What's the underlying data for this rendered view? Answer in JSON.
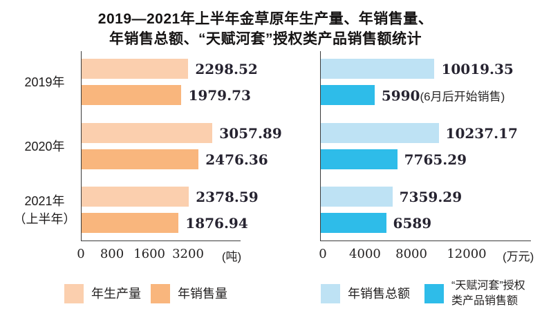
{
  "title": {
    "line1": "2019—2021年上半年金草原年生产量、年销售量、",
    "line2": "年销售总额、“天赋河套”授权类产品销售额统计"
  },
  "colors": {
    "production": "#FBCFAE",
    "sales": "#F9B67D",
    "total_sales": "#BEE2F4",
    "licensed": "#2EBCE9",
    "axis": "#3a3a3a",
    "text": "#1f1d1d"
  },
  "categories": [
    "2019年",
    "2020年",
    "2021年（上半年）"
  ],
  "category_lines": [
    [
      "2019年"
    ],
    [
      "2020年"
    ],
    [
      "2021年",
      "（上半年）"
    ]
  ],
  "chart_data": [
    {
      "type": "bar",
      "orientation": "horizontal",
      "unit": "(吨)",
      "categories": [
        "2019年",
        "2020年",
        "2021年（上半年）"
      ],
      "x_ticks": [
        "0",
        "800",
        "1600",
        "3200"
      ],
      "tick_pcts": [
        0,
        19.5,
        42.9,
        67.1
      ],
      "unit_pct": 94.4,
      "series": [
        {
          "name": "年生产量",
          "color_key": "production",
          "values": [
            2298.52,
            3057.89,
            2378.59
          ],
          "width_pcts": [
            67.1,
            82.3,
            67.5
          ]
        },
        {
          "name": "年销售量",
          "color_key": "sales",
          "values": [
            1979.73,
            2476.36,
            1876.94
          ],
          "width_pcts": [
            62.8,
            73.6,
            61.0
          ]
        }
      ]
    },
    {
      "type": "bar",
      "orientation": "horizontal",
      "unit": "(万元)",
      "categories": [
        "2019年",
        "2020年",
        "2021年（上半年）"
      ],
      "x_ticks": [
        "0",
        "4000",
        "8000",
        "12000"
      ],
      "tick_pcts": [
        1.3,
        21.3,
        43.3,
        69.5
      ],
      "unit_pct": 94.0,
      "series": [
        {
          "name": "年销售总额",
          "color_key": "total_sales",
          "values": [
            10019.35,
            10237.17,
            7359.29
          ],
          "width_pcts": [
            54.1,
            56.1,
            34.1
          ]
        },
        {
          "name": "“天赋河套”授权类产品销售额",
          "color_key": "licensed",
          "values": [
            5990,
            7765.29,
            6589
          ],
          "value_suffixes": [
            "(6月后开始销售)",
            "",
            ""
          ],
          "width_pcts": [
            25.6,
            36.4,
            31.1
          ]
        }
      ]
    }
  ],
  "legend": {
    "items": [
      {
        "label_lines": [
          "年生产量"
        ],
        "color_key": "production"
      },
      {
        "label_lines": [
          "年销售量"
        ],
        "color_key": "sales"
      },
      {
        "label_lines": [
          "年销售总额"
        ],
        "color_key": "total_sales"
      },
      {
        "label_lines": [
          "“天赋河套”授权",
          "类产品销售额"
        ],
        "color_key": "licensed"
      }
    ]
  }
}
